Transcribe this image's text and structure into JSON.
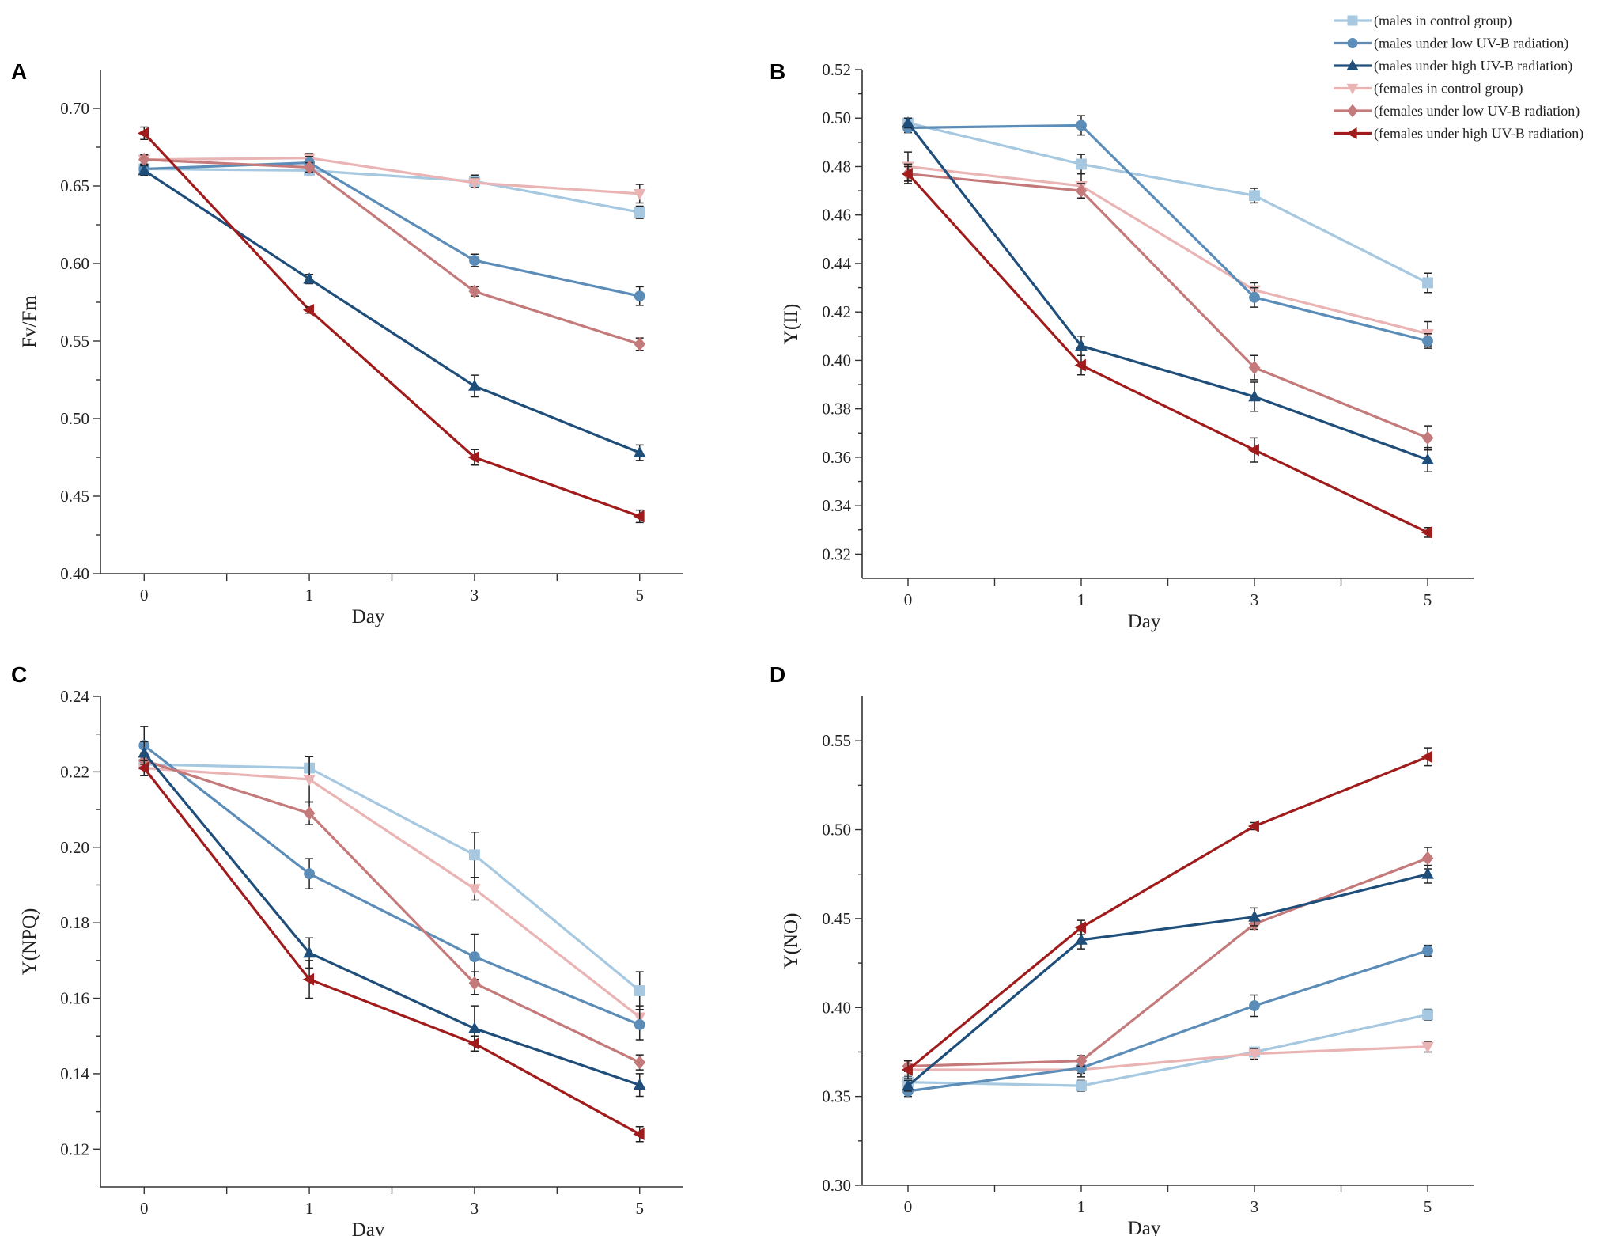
{
  "legend": [
    {
      "label": "(males in control group)",
      "color": "#a6c8e0",
      "marker": "square"
    },
    {
      "label": "(males under low UV-B radiation)",
      "color": "#5b8db8",
      "marker": "circle"
    },
    {
      "label": "(males under high UV-B radiation)",
      "color": "#1f4e7a",
      "marker": "triangle-up"
    },
    {
      "label": "(females in control group)",
      "color": "#eab4b4",
      "marker": "triangle-down"
    },
    {
      "label": "(females under low UV-B radiation)",
      "color": "#c47a7a",
      "marker": "diamond"
    },
    {
      "label": "(females under high UV-B radiation)",
      "color": "#a01c1c",
      "marker": "triangle-left"
    }
  ],
  "chart_data": [
    {
      "panel": "A",
      "type": "line",
      "xlabel": "Day",
      "ylabel": "Fv/Fm",
      "categories": [
        "0",
        "1",
        "3",
        "5"
      ],
      "ylim": [
        0.4,
        0.725
      ],
      "yticks": [
        "0.40",
        "0.45",
        "0.50",
        "0.55",
        "0.60",
        "0.65",
        "0.70"
      ],
      "series": [
        {
          "name": "(males in control group)",
          "values": [
            0.661,
            0.66,
            0.653,
            0.633
          ],
          "errors": [
            0.003,
            0.003,
            0.004,
            0.004
          ]
        },
        {
          "name": "(males under low UV-B radiation)",
          "values": [
            0.661,
            0.665,
            0.602,
            0.579
          ],
          "errors": [
            0.003,
            0.004,
            0.004,
            0.006
          ]
        },
        {
          "name": "(males under high UV-B radiation)",
          "values": [
            0.66,
            0.59,
            0.521,
            0.478
          ],
          "errors": [
            0.003,
            0.003,
            0.007,
            0.005
          ]
        },
        {
          "name": "(females in control group)",
          "values": [
            0.667,
            0.668,
            0.652,
            0.645
          ],
          "errors": [
            0.003,
            0.003,
            0.003,
            0.006
          ]
        },
        {
          "name": "(females under low UV-B radiation)",
          "values": [
            0.667,
            0.662,
            0.582,
            0.548
          ],
          "errors": [
            0.003,
            0.003,
            0.003,
            0.004
          ]
        },
        {
          "name": "(females under high UV-B radiation)",
          "values": [
            0.684,
            0.57,
            0.475,
            0.437
          ],
          "errors": [
            0.004,
            0.002,
            0.005,
            0.004
          ]
        }
      ]
    },
    {
      "panel": "B",
      "type": "line",
      "xlabel": "Day",
      "ylabel": "Y(II)",
      "categories": [
        "0",
        "1",
        "3",
        "5"
      ],
      "ylim": [
        0.31,
        0.52
      ],
      "yticks": [
        "0.32",
        "0.34",
        "0.36",
        "0.38",
        "0.40",
        "0.42",
        "0.44",
        "0.46",
        "0.48",
        "0.50",
        "0.52"
      ],
      "series": [
        {
          "name": "(males in control group)",
          "values": [
            0.498,
            0.481,
            0.468,
            0.432
          ],
          "errors": [
            0.002,
            0.004,
            0.003,
            0.004
          ]
        },
        {
          "name": "(males under low UV-B radiation)",
          "values": [
            0.496,
            0.497,
            0.426,
            0.408
          ],
          "errors": [
            0.002,
            0.004,
            0.004,
            0.003
          ]
        },
        {
          "name": "(males under high UV-B radiation)",
          "values": [
            0.498,
            0.406,
            0.385,
            0.359
          ],
          "errors": [
            0.002,
            0.004,
            0.006,
            0.005
          ]
        },
        {
          "name": "(females in control group)",
          "values": [
            0.48,
            0.472,
            0.429,
            0.411
          ],
          "errors": [
            0.006,
            0.005,
            0.003,
            0.005
          ]
        },
        {
          "name": "(females under low UV-B radiation)",
          "values": [
            0.477,
            0.47,
            0.397,
            0.368
          ],
          "errors": [
            0.004,
            0.003,
            0.005,
            0.005
          ]
        },
        {
          "name": "(females under high UV-B radiation)",
          "values": [
            0.477,
            0.398,
            0.363,
            0.329
          ],
          "errors": [
            0.003,
            0.004,
            0.005,
            0.002
          ]
        }
      ]
    },
    {
      "panel": "C",
      "type": "line",
      "xlabel": "Day",
      "ylabel": "Y(NPQ)",
      "categories": [
        "0",
        "1",
        "3",
        "5"
      ],
      "ylim": [
        0.11,
        0.24
      ],
      "yticks": [
        "0.12",
        "0.14",
        "0.16",
        "0.18",
        "0.20",
        "0.22",
        "0.24"
      ],
      "series": [
        {
          "name": "(males in control group)",
          "values": [
            0.222,
            0.221,
            0.198,
            0.162
          ],
          "errors": [
            0.003,
            0.003,
            0.006,
            0.005
          ]
        },
        {
          "name": "(males under low UV-B radiation)",
          "values": [
            0.227,
            0.193,
            0.171,
            0.153
          ],
          "errors": [
            0.005,
            0.004,
            0.006,
            0.004
          ]
        },
        {
          "name": "(males under high UV-B radiation)",
          "values": [
            0.225,
            0.172,
            0.152,
            0.137
          ],
          "errors": [
            0.003,
            0.004,
            0.006,
            0.003
          ]
        },
        {
          "name": "(females in control group)",
          "values": [
            0.221,
            0.218,
            0.189,
            0.155
          ],
          "errors": [
            0.002,
            0.006,
            0.003,
            0.003
          ]
        },
        {
          "name": "(females under low UV-B radiation)",
          "values": [
            0.223,
            0.209,
            0.164,
            0.143
          ],
          "errors": [
            0.002,
            0.003,
            0.003,
            0.002
          ]
        },
        {
          "name": "(females under high UV-B radiation)",
          "values": [
            0.221,
            0.165,
            0.148,
            0.124
          ],
          "errors": [
            0.002,
            0.005,
            0.002,
            0.002
          ]
        }
      ]
    },
    {
      "panel": "D",
      "type": "line",
      "xlabel": "Day",
      "ylabel": "Y(NO)",
      "categories": [
        "0",
        "1",
        "3",
        "5"
      ],
      "ylim": [
        0.3,
        0.575
      ],
      "yticks": [
        "0.30",
        "0.35",
        "0.40",
        "0.45",
        "0.50",
        "0.55"
      ],
      "series": [
        {
          "name": "(males in control group)",
          "values": [
            0.358,
            0.356,
            0.375,
            0.396
          ],
          "errors": [
            0.003,
            0.003,
            0.002,
            0.003
          ]
        },
        {
          "name": "(males under low UV-B radiation)",
          "values": [
            0.353,
            0.366,
            0.401,
            0.432
          ],
          "errors": [
            0.003,
            0.005,
            0.006,
            0.003
          ]
        },
        {
          "name": "(males under high UV-B radiation)",
          "values": [
            0.356,
            0.438,
            0.451,
            0.475
          ],
          "errors": [
            0.003,
            0.005,
            0.005,
            0.005
          ]
        },
        {
          "name": "(females in control group)",
          "values": [
            0.365,
            0.365,
            0.374,
            0.378
          ],
          "errors": [
            0.003,
            0.002,
            0.003,
            0.003
          ]
        },
        {
          "name": "(females under low UV-B radiation)",
          "values": [
            0.367,
            0.37,
            0.447,
            0.484
          ],
          "errors": [
            0.003,
            0.003,
            0.003,
            0.006
          ]
        },
        {
          "name": "(females under high UV-B radiation)",
          "values": [
            0.365,
            0.445,
            0.502,
            0.541
          ],
          "errors": [
            0.005,
            0.004,
            0.002,
            0.005
          ]
        }
      ]
    }
  ]
}
